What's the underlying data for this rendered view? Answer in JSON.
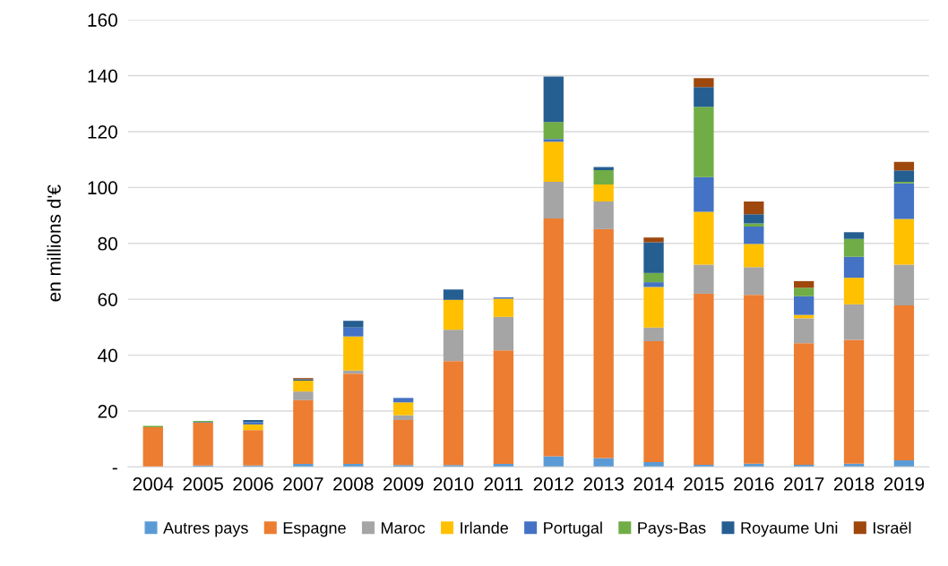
{
  "chart_data": {
    "type": "bar",
    "stacked": true,
    "ylabel": "en millions d'€",
    "categories": [
      "2004",
      "2005",
      "2006",
      "2007",
      "2008",
      "2009",
      "2010",
      "2011",
      "2012",
      "2013",
      "2014",
      "2015",
      "2016",
      "2017",
      "2018",
      "2019"
    ],
    "series": [
      {
        "name": "Autres pays",
        "color": "#5b9bd5",
        "values": [
          null,
          0.5,
          0.5,
          1.1,
          1.1,
          0.7,
          0.7,
          1.1,
          3.8,
          3.2,
          1.7,
          0.8,
          1.2,
          0.8,
          1.2,
          2.4
        ]
      },
      {
        "name": "Espagne",
        "color": "#ed7d31",
        "values": [
          14.2,
          15.3,
          12.7,
          22.8,
          32.3,
          16.1,
          37.2,
          40.6,
          85.1,
          81.9,
          43.3,
          61.2,
          60.4,
          43.5,
          44.3,
          55.4
        ]
      },
      {
        "name": "Maroc",
        "color": "#a5a5a5",
        "values": [
          0,
          0,
          0,
          3.1,
          1.1,
          1.7,
          11.2,
          12.0,
          13.1,
          9.9,
          4.9,
          10.4,
          9.9,
          8.9,
          12.7,
          14.6
        ]
      },
      {
        "name": "Irlande",
        "color": "#ffc000",
        "values": [
          0,
          0,
          2.0,
          3.9,
          12.2,
          4.6,
          10.7,
          6.5,
          14.4,
          6.1,
          14.5,
          18.9,
          8.3,
          1.2,
          9.5,
          16.3
        ]
      },
      {
        "name": "Portugal",
        "color": "#4472c4",
        "values": [
          null,
          0.3,
          0.8,
          0,
          3.2,
          1.6,
          0,
          0.5,
          0.9,
          0,
          1.7,
          12.4,
          6.2,
          6.7,
          7.5,
          12.8
        ]
      },
      {
        "name": "Pays-Bas",
        "color": "#70ad47",
        "values": [
          0.5,
          0.4,
          0,
          0,
          0,
          0,
          0,
          0,
          6.1,
          5.1,
          3.3,
          25.2,
          1.1,
          3.0,
          6.4,
          0.5
        ]
      },
      {
        "name": "Royaume Uni",
        "color": "#255e91",
        "values": [
          0,
          0,
          0.8,
          0.5,
          2.4,
          0,
          3.7,
          0,
          16.3,
          1.1,
          11.0,
          7.0,
          3.3,
          0,
          2.4,
          4.1
        ]
      },
      {
        "name": "Israël",
        "color": "#9e480e",
        "values": [
          0,
          0,
          0,
          0.4,
          0,
          0,
          0,
          0,
          0,
          0,
          1.7,
          3.2,
          4.6,
          2.4,
          0,
          3.1
        ]
      }
    ],
    "ylim": [
      0,
      160
    ],
    "yticks": [
      {
        "value": 0,
        "label": "-"
      },
      20,
      40,
      60,
      80,
      100,
      120,
      140,
      160
    ],
    "grid": "y",
    "legend": "bottom"
  }
}
